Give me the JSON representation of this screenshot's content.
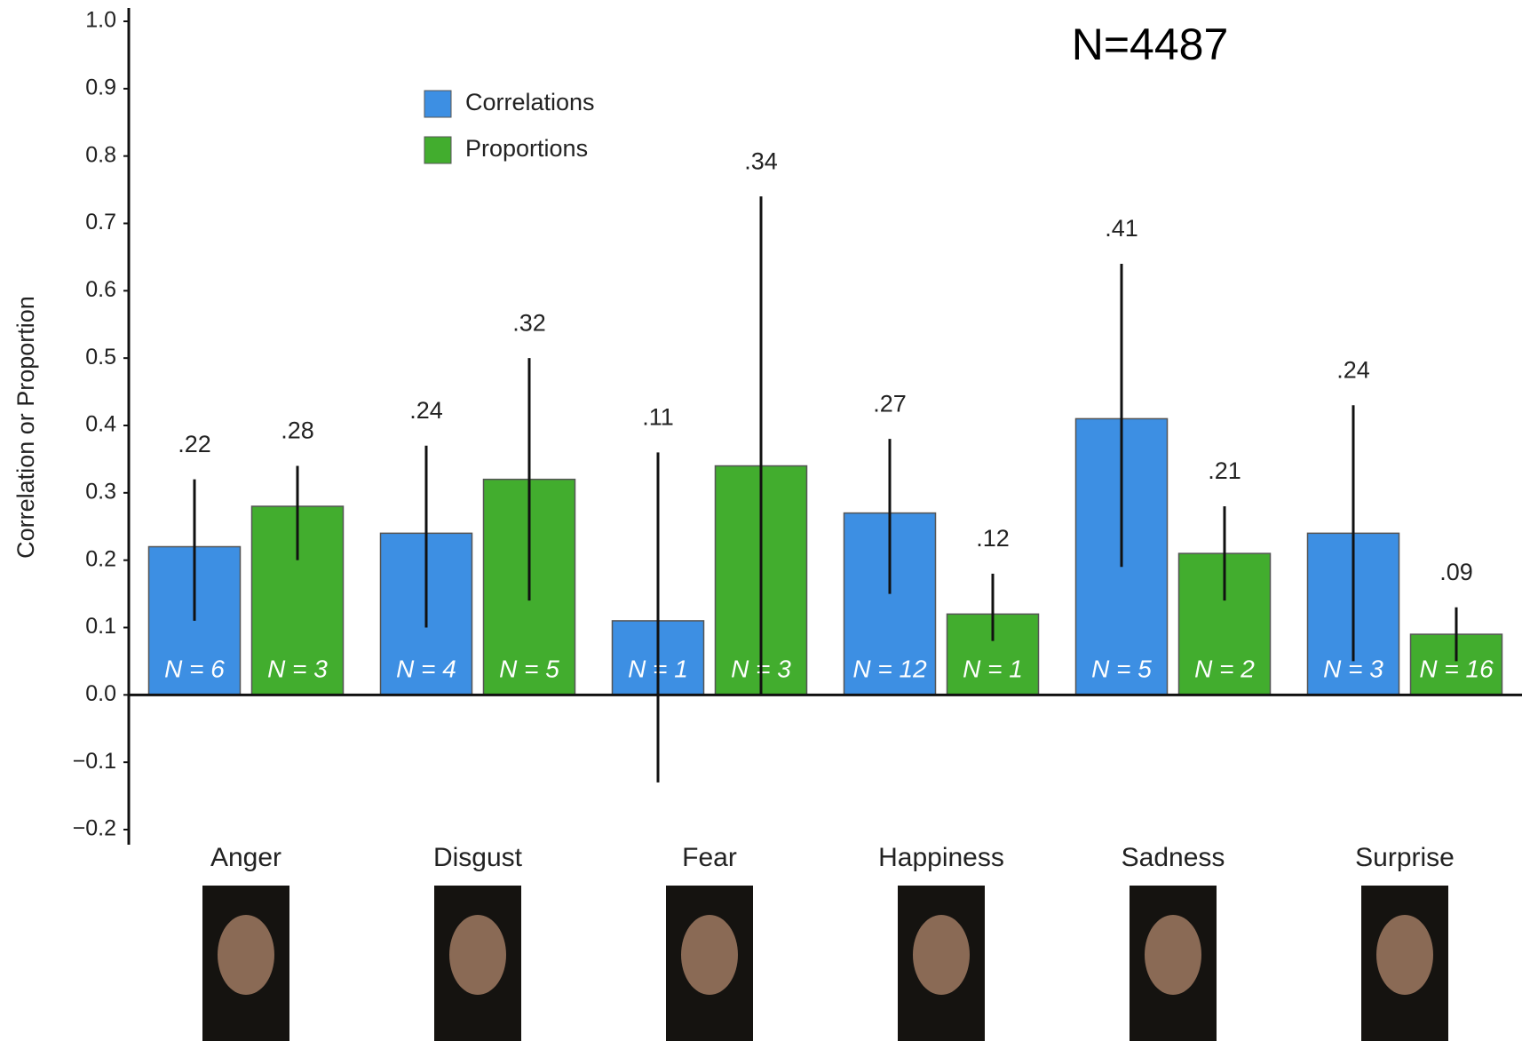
{
  "chart_data": {
    "type": "bar",
    "y_label": "Correlation or Proportion",
    "annotation": "N=4487",
    "categories": [
      "Anger",
      "Disgust",
      "Fear",
      "Happiness",
      "Sadness",
      "Surprise"
    ],
    "series": [
      {
        "name": "Correlations",
        "color": "#3d8fe3",
        "values": [
          0.22,
          0.24,
          0.11,
          0.27,
          0.41,
          0.24
        ],
        "value_labels": [
          ".22",
          ".24",
          ".11",
          ".27",
          ".41",
          ".24"
        ],
        "low": [
          0.11,
          0.1,
          -0.13,
          0.15,
          0.19,
          0.05
        ],
        "high": [
          0.32,
          0.37,
          0.36,
          0.38,
          0.64,
          0.43
        ],
        "n_labels": [
          "N = 6",
          "N = 4",
          "N = 1",
          "N = 12",
          "N = 5",
          "N = 3"
        ]
      },
      {
        "name": "Proportions",
        "color": "#42ad2e",
        "values": [
          0.28,
          0.32,
          0.34,
          0.12,
          0.21,
          0.09
        ],
        "value_labels": [
          ".28",
          ".32",
          ".34",
          ".12",
          ".21",
          ".09"
        ],
        "low": [
          0.2,
          0.14,
          0.0,
          0.08,
          0.14,
          0.05
        ],
        "high": [
          0.34,
          0.5,
          0.74,
          0.18,
          0.28,
          0.13
        ],
        "n_labels": [
          "N = 3",
          "N = 5",
          "N = 3",
          "N = 1",
          "N = 2",
          "N = 16"
        ]
      }
    ],
    "ylim": [
      -0.2,
      1.0
    ],
    "yticks": [
      {
        "value": -0.2,
        "label": "−0.2"
      },
      {
        "value": -0.1,
        "label": "−0.1"
      },
      {
        "value": 0,
        "label": "0.0"
      },
      0.1,
      0.2,
      0.3,
      0.4,
      0.5,
      0.6,
      0.7,
      0.8,
      0.9,
      {
        "value": 1,
        "label": "1.0"
      }
    ],
    "grid": false
  }
}
